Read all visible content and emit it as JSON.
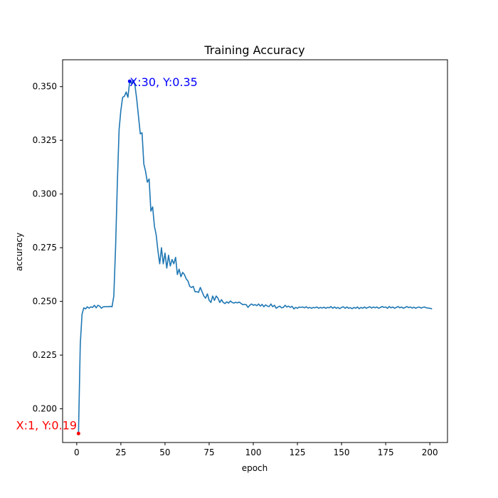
{
  "chart_data": {
    "type": "line",
    "title": "Training Accuracy",
    "xlabel": "epoch",
    "ylabel": "accuracy",
    "xlim": [
      -8,
      210
    ],
    "ylim": [
      0.1843,
      0.3625
    ],
    "xticks": [
      0,
      25,
      50,
      75,
      100,
      125,
      150,
      175,
      200
    ],
    "xtick_labels": [
      "0",
      "25",
      "50",
      "75",
      "100",
      "125",
      "150",
      "175",
      "200"
    ],
    "yticks": [
      0.2,
      0.225,
      0.25,
      0.275,
      0.3,
      0.325,
      0.35
    ],
    "ytick_labels": [
      "0.200",
      "0.225",
      "0.250",
      "0.275",
      "0.300",
      "0.325",
      "0.350"
    ],
    "grid": false,
    "line_color": "#1f77b4",
    "series": [
      {
        "values": [
          [
            1,
            0.1885
          ],
          [
            2,
            0.23
          ],
          [
            3,
            0.244
          ],
          [
            4,
            0.247
          ],
          [
            5,
            0.2465
          ],
          [
            6,
            0.2475
          ],
          [
            7,
            0.2468
          ],
          [
            8,
            0.2475
          ],
          [
            9,
            0.2472
          ],
          [
            10,
            0.2482
          ],
          [
            11,
            0.247
          ],
          [
            12,
            0.2482
          ],
          [
            13,
            0.2478
          ],
          [
            14,
            0.2468
          ],
          [
            15,
            0.2475
          ],
          [
            16,
            0.2475
          ],
          [
            17,
            0.2476
          ],
          [
            18,
            0.2475
          ],
          [
            19,
            0.2477
          ],
          [
            20,
            0.2475
          ],
          [
            21,
            0.2525
          ],
          [
            22,
            0.275
          ],
          [
            23,
            0.305
          ],
          [
            24,
            0.33
          ],
          [
            25,
            0.339
          ],
          [
            26,
            0.345
          ],
          [
            27,
            0.3455
          ],
          [
            28,
            0.3475
          ],
          [
            29,
            0.345
          ],
          [
            30,
            0.3525
          ],
          [
            31,
            0.3515
          ],
          [
            32,
            0.353
          ],
          [
            33,
            0.3505
          ],
          [
            34,
            0.344
          ],
          [
            35,
            0.336
          ],
          [
            36,
            0.328
          ],
          [
            37,
            0.3285
          ],
          [
            38,
            0.314
          ],
          [
            39,
            0.3105
          ],
          [
            40,
            0.3055
          ],
          [
            41,
            0.307
          ],
          [
            42,
            0.292
          ],
          [
            43,
            0.294
          ],
          [
            44,
            0.285
          ],
          [
            45,
            0.281
          ],
          [
            46,
            0.2735
          ],
          [
            47,
            0.2675
          ],
          [
            48,
            0.275
          ],
          [
            49,
            0.2675
          ],
          [
            50,
            0.2725
          ],
          [
            51,
            0.2655
          ],
          [
            52,
            0.2715
          ],
          [
            53,
            0.2665
          ],
          [
            54,
            0.2695
          ],
          [
            55,
            0.2675
          ],
          [
            56,
            0.2705
          ],
          [
            57,
            0.2625
          ],
          [
            58,
            0.265
          ],
          [
            59,
            0.2615
          ],
          [
            60,
            0.2635
          ],
          [
            61,
            0.2625
          ],
          [
            62,
            0.2605
          ],
          [
            63,
            0.2595
          ],
          [
            64,
            0.257
          ],
          [
            65,
            0.2565
          ],
          [
            66,
            0.257
          ],
          [
            67,
            0.2545
          ],
          [
            68,
            0.2545
          ],
          [
            69,
            0.2542
          ],
          [
            70,
            0.2565
          ],
          [
            71,
            0.2545
          ],
          [
            72,
            0.2525
          ],
          [
            73,
            0.2515
          ],
          [
            74,
            0.2535
          ],
          [
            75,
            0.2505
          ],
          [
            76,
            0.2495
          ],
          [
            77,
            0.2525
          ],
          [
            78,
            0.2505
          ],
          [
            79,
            0.2525
          ],
          [
            80,
            0.2515
          ],
          [
            81,
            0.2495
          ],
          [
            82,
            0.2508
          ],
          [
            83,
            0.2495
          ],
          [
            84,
            0.249
          ],
          [
            85,
            0.2498
          ],
          [
            86,
            0.2492
          ],
          [
            87,
            0.2502
          ],
          [
            88,
            0.2495
          ],
          [
            89,
            0.2492
          ],
          [
            90,
            0.2496
          ],
          [
            91,
            0.2493
          ],
          [
            92,
            0.2497
          ],
          [
            93,
            0.2491
          ],
          [
            94,
            0.2485
          ],
          [
            95,
            0.2486
          ],
          [
            96,
            0.2485
          ],
          [
            97,
            0.2472
          ],
          [
            98,
            0.2482
          ],
          [
            99,
            0.2488
          ],
          [
            100,
            0.2482
          ],
          [
            101,
            0.2485
          ],
          [
            102,
            0.248
          ],
          [
            103,
            0.2488
          ],
          [
            104,
            0.2478
          ],
          [
            105,
            0.2486
          ],
          [
            106,
            0.2475
          ],
          [
            107,
            0.2484
          ],
          [
            108,
            0.2478
          ],
          [
            109,
            0.2476
          ],
          [
            110,
            0.2488
          ],
          [
            111,
            0.2475
          ],
          [
            112,
            0.2482
          ],
          [
            113,
            0.2468
          ],
          [
            114,
            0.2474
          ],
          [
            115,
            0.2478
          ],
          [
            116,
            0.247
          ],
          [
            117,
            0.2472
          ],
          [
            118,
            0.2482
          ],
          [
            119,
            0.2474
          ],
          [
            120,
            0.2478
          ],
          [
            121,
            0.2472
          ],
          [
            122,
            0.2477
          ],
          [
            123,
            0.2465
          ],
          [
            124,
            0.2472
          ],
          [
            125,
            0.2468
          ],
          [
            126,
            0.2474
          ],
          [
            127,
            0.2472
          ],
          [
            128,
            0.2474
          ],
          [
            129,
            0.247
          ],
          [
            130,
            0.2475
          ],
          [
            131,
            0.2469
          ],
          [
            132,
            0.2472
          ],
          [
            133,
            0.2468
          ],
          [
            134,
            0.2472
          ],
          [
            135,
            0.247
          ],
          [
            136,
            0.2474
          ],
          [
            137,
            0.2468
          ],
          [
            138,
            0.2472
          ],
          [
            139,
            0.2469
          ],
          [
            140,
            0.2473
          ],
          [
            141,
            0.2468
          ],
          [
            142,
            0.2472
          ],
          [
            143,
            0.247
          ],
          [
            144,
            0.2476
          ],
          [
            145,
            0.2468
          ],
          [
            146,
            0.2474
          ],
          [
            147,
            0.2468
          ],
          [
            148,
            0.2472
          ],
          [
            149,
            0.2466
          ],
          [
            150,
            0.2472
          ],
          [
            151,
            0.2475
          ],
          [
            152,
            0.2468
          ],
          [
            153,
            0.2474
          ],
          [
            154,
            0.2468
          ],
          [
            155,
            0.2471
          ],
          [
            156,
            0.2466
          ],
          [
            157,
            0.2472
          ],
          [
            158,
            0.2468
          ],
          [
            159,
            0.2474
          ],
          [
            160,
            0.2466
          ],
          [
            161,
            0.2472
          ],
          [
            162,
            0.2468
          ],
          [
            163,
            0.2474
          ],
          [
            164,
            0.2468
          ],
          [
            165,
            0.2472
          ],
          [
            166,
            0.2475
          ],
          [
            167,
            0.2469
          ],
          [
            168,
            0.2474
          ],
          [
            169,
            0.247
          ],
          [
            170,
            0.2474
          ],
          [
            171,
            0.2468
          ],
          [
            172,
            0.2472
          ],
          [
            173,
            0.2476
          ],
          [
            174,
            0.2472
          ],
          [
            175,
            0.2474
          ],
          [
            176,
            0.2468
          ],
          [
            177,
            0.2476
          ],
          [
            178,
            0.247
          ],
          [
            179,
            0.2474
          ],
          [
            180,
            0.2468
          ],
          [
            181,
            0.2472
          ],
          [
            182,
            0.2476
          ],
          [
            183,
            0.247
          ],
          [
            184,
            0.2474
          ],
          [
            185,
            0.2468
          ],
          [
            186,
            0.2472
          ],
          [
            187,
            0.2476
          ],
          [
            188,
            0.2471
          ],
          [
            189,
            0.2474
          ],
          [
            190,
            0.2469
          ],
          [
            191,
            0.2473
          ],
          [
            192,
            0.2468
          ],
          [
            193,
            0.2472
          ],
          [
            194,
            0.2474
          ],
          [
            195,
            0.2469
          ],
          [
            196,
            0.2472
          ],
          [
            197,
            0.2474
          ],
          [
            198,
            0.247
          ],
          [
            199,
            0.2469
          ],
          [
            200,
            0.2468
          ],
          [
            201,
            0.2466
          ]
        ]
      }
    ],
    "annotations": [
      {
        "x": 1,
        "y": 0.1885,
        "text": "X:1, Y:0.19",
        "color": "#ff0000"
      },
      {
        "x": 30,
        "y": 0.3525,
        "text": "X:30, Y:0.35",
        "color": "#0000ff"
      }
    ]
  }
}
